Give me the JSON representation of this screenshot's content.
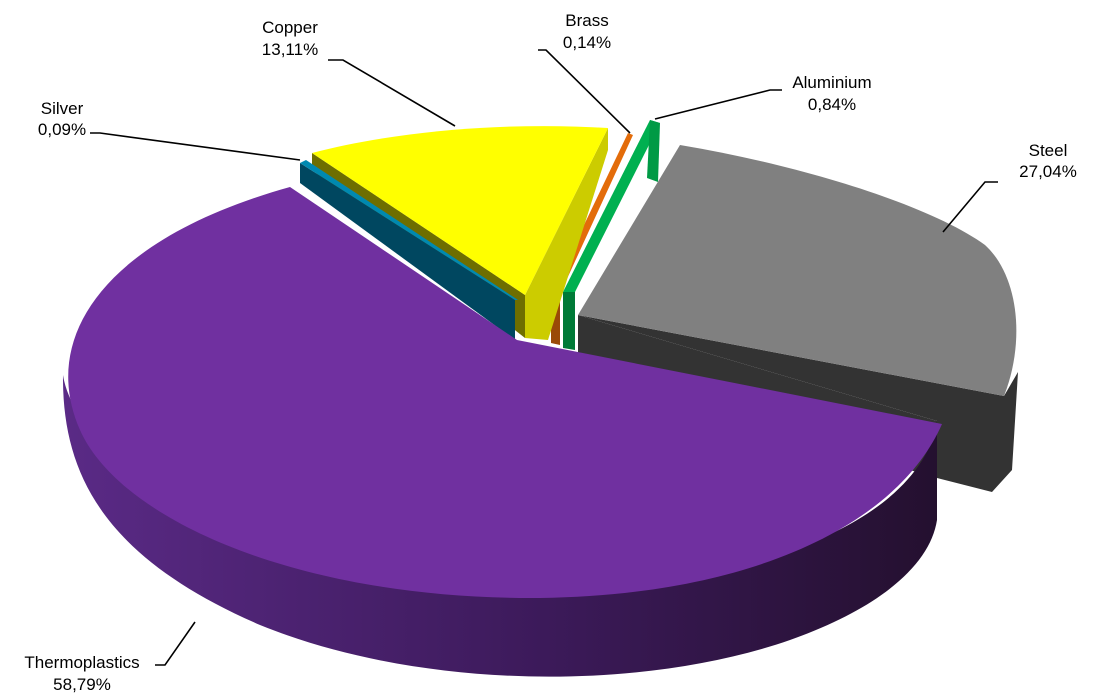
{
  "chart_data": {
    "type": "pie",
    "style": "3d-exploded",
    "slices": [
      {
        "name": "Steel",
        "value": 27.04,
        "label": "27,04%",
        "color": "#808080",
        "side_color": "#333333"
      },
      {
        "name": "Thermoplastics",
        "value": 58.79,
        "label": "58,79%",
        "color": "#7030A0",
        "side_color": "#3A1856"
      },
      {
        "name": "Silver",
        "value": 0.09,
        "label": "0,09%",
        "color": "#006080",
        "side_color": "#003A4E"
      },
      {
        "name": "Copper",
        "value": 13.11,
        "label": "13,11%",
        "color": "#FFFF00",
        "side_color": "#CCCC00"
      },
      {
        "name": "Brass",
        "value": 0.14,
        "label": "0,14%",
        "color": "#E36C0A",
        "side_color": "#9A4A07"
      },
      {
        "name": "Aluminium",
        "value": 0.84,
        "label": "0,84%",
        "color": "#00B050",
        "side_color": "#007A37"
      }
    ],
    "legend": "none"
  }
}
